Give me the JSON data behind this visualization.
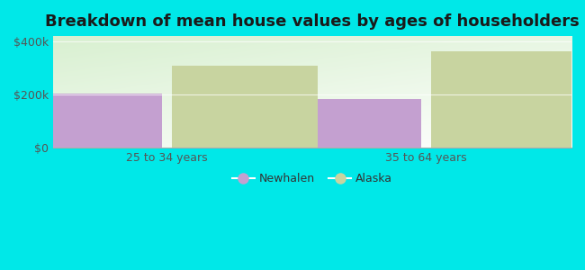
{
  "title": "Breakdown of mean house values by ages of householders",
  "categories": [
    "25 to 34 years",
    "35 to 64 years"
  ],
  "newhalen_values": [
    205000,
    185000
  ],
  "alaska_values": [
    308000,
    362000
  ],
  "newhalen_color": "#c4a0d0",
  "alaska_color": "#c8d4a0",
  "background_color": "#00e8e8",
  "plot_bg_top": "#f0f8e8",
  "plot_bg_bottom": "#d8f0d0",
  "ylim": [
    0,
    420000
  ],
  "yticks": [
    0,
    200000,
    400000
  ],
  "ytick_labels": [
    "$0",
    "$200k",
    "$400k"
  ],
  "bar_width": 0.28,
  "legend_newhalen": "Newhalen",
  "legend_alaska": "Alaska",
  "title_fontsize": 13,
  "tick_fontsize": 9,
  "legend_fontsize": 9
}
